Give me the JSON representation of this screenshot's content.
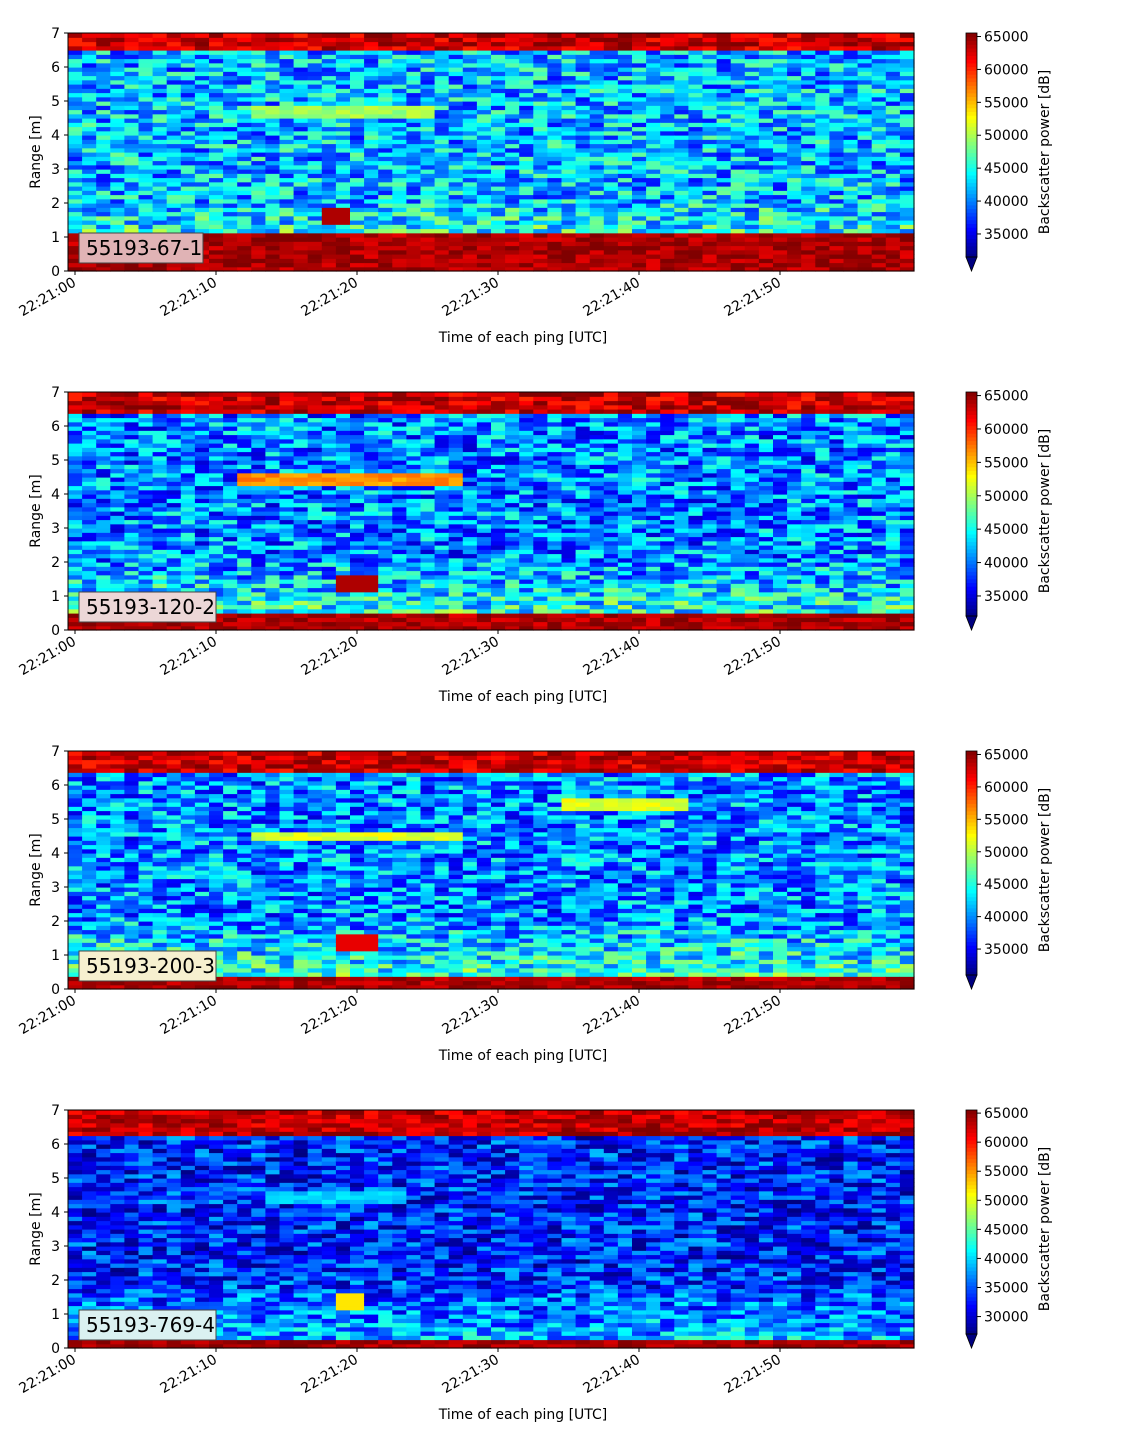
{
  "chart_data": [
    {
      "type": "heatmap",
      "panel_label": "55193-67-1",
      "xlabel": "Time of each ping [UTC]",
      "ylabel": "Range [m]",
      "x_ticks": [
        "22:21:00",
        "22:21:10",
        "22:21:20",
        "22:21:30",
        "22:21:40",
        "22:21:50"
      ],
      "y_ticks": [
        "0",
        "1",
        "2",
        "3",
        "4",
        "5",
        "6",
        "7"
      ],
      "ylim": [
        0,
        7
      ],
      "colorbar": {
        "label": "Backscatter power [dB]",
        "colormap": "jet",
        "extend": "min",
        "range": [
          31500,
          65535
        ],
        "ticks": [
          "35000",
          "40000",
          "45000",
          "50000",
          "55000",
          "60000",
          "65000"
        ]
      },
      "badge_color": "#e0b3b5",
      "features": {
        "bottom_band_top": 1.15,
        "top_band_bottom": 6.45,
        "background": 42000,
        "echo_layer": {
          "start": 13,
          "end": 26,
          "range": 4.7,
          "value": 48000
        },
        "hotspot": {
          "time": 19,
          "range": 1.65,
          "value": 64000
        }
      }
    },
    {
      "type": "heatmap",
      "panel_label": "55193-120-2",
      "xlabel": "Time of each ping [UTC]",
      "ylabel": "Range [m]",
      "x_ticks": [
        "22:21:00",
        "22:21:10",
        "22:21:20",
        "22:21:30",
        "22:21:40",
        "22:21:50"
      ],
      "y_ticks": [
        "0",
        "1",
        "2",
        "3",
        "4",
        "5",
        "6",
        "7"
      ],
      "ylim": [
        0,
        7
      ],
      "colorbar": {
        "label": "Backscatter power [dB]",
        "colormap": "jet",
        "extend": "min",
        "range": [
          32000,
          65535
        ],
        "ticks": [
          "35000",
          "40000",
          "45000",
          "50000",
          "55000",
          "60000",
          "65000"
        ]
      },
      "badge_color": "#ecd7d7",
      "features": {
        "bottom_band_top": 0.55,
        "top_band_bottom": 6.35,
        "background": 40500,
        "echo_layer": {
          "start": 12.5,
          "end": 27.5,
          "range": 4.45,
          "value": 55000
        },
        "hotspot": {
          "time": 20.5,
          "range": 1.4,
          "value": 64000
        }
      }
    },
    {
      "type": "heatmap",
      "panel_label": "55193-200-3",
      "xlabel": "Time of each ping [UTC]",
      "ylabel": "Range [m]",
      "x_ticks": [
        "22:21:00",
        "22:21:10",
        "22:21:20",
        "22:21:30",
        "22:21:40",
        "22:21:50"
      ],
      "y_ticks": [
        "0",
        "1",
        "2",
        "3",
        "4",
        "5",
        "6",
        "7"
      ],
      "ylim": [
        0,
        7
      ],
      "colorbar": {
        "label": "Backscatter power [dB]",
        "colormap": "jet",
        "extend": "min",
        "range": [
          31000,
          65535
        ],
        "ticks": [
          "35000",
          "40000",
          "45000",
          "50000",
          "55000",
          "60000",
          "65000"
        ]
      },
      "badge_color": "#f6f0cf",
      "features": {
        "bottom_band_top": 0.4,
        "top_band_bottom": 6.35,
        "background": 40000,
        "echo_layer": {
          "start": 13,
          "end": 28,
          "range": 4.5,
          "value": 50000
        },
        "echo_layer_2": {
          "start": 35,
          "end": 44,
          "range": 5.45,
          "value": 50000
        },
        "hotspot": {
          "time": 20.5,
          "range": 1.4,
          "value": 62000
        }
      }
    },
    {
      "type": "heatmap",
      "panel_label": "55193-769-4",
      "xlabel": "Time of each ping [UTC]",
      "ylabel": "Range [m]",
      "x_ticks": [
        "22:21:00",
        "22:21:10",
        "22:21:20",
        "22:21:30",
        "22:21:40",
        "22:21:50"
      ],
      "y_ticks": [
        "0",
        "1",
        "2",
        "3",
        "4",
        "5",
        "6",
        "7"
      ],
      "ylim": [
        0,
        7
      ],
      "colorbar": {
        "label": "Backscatter power [dB]",
        "colormap": "jet",
        "extend": "min",
        "range": [
          27000,
          65535
        ],
        "ticks": [
          "30000",
          "35000",
          "40000",
          "45000",
          "50000",
          "55000",
          "60000",
          "65000"
        ]
      },
      "badge_color": "#daf1f1",
      "features": {
        "bottom_band_top": 0.3,
        "top_band_bottom": 6.3,
        "background": 33000,
        "echo_layer": {
          "start": 14,
          "end": 24,
          "range": 4.4,
          "value": 38000
        },
        "hotspot": {
          "time": 20,
          "range": 1.35,
          "value": 52000
        }
      }
    }
  ]
}
